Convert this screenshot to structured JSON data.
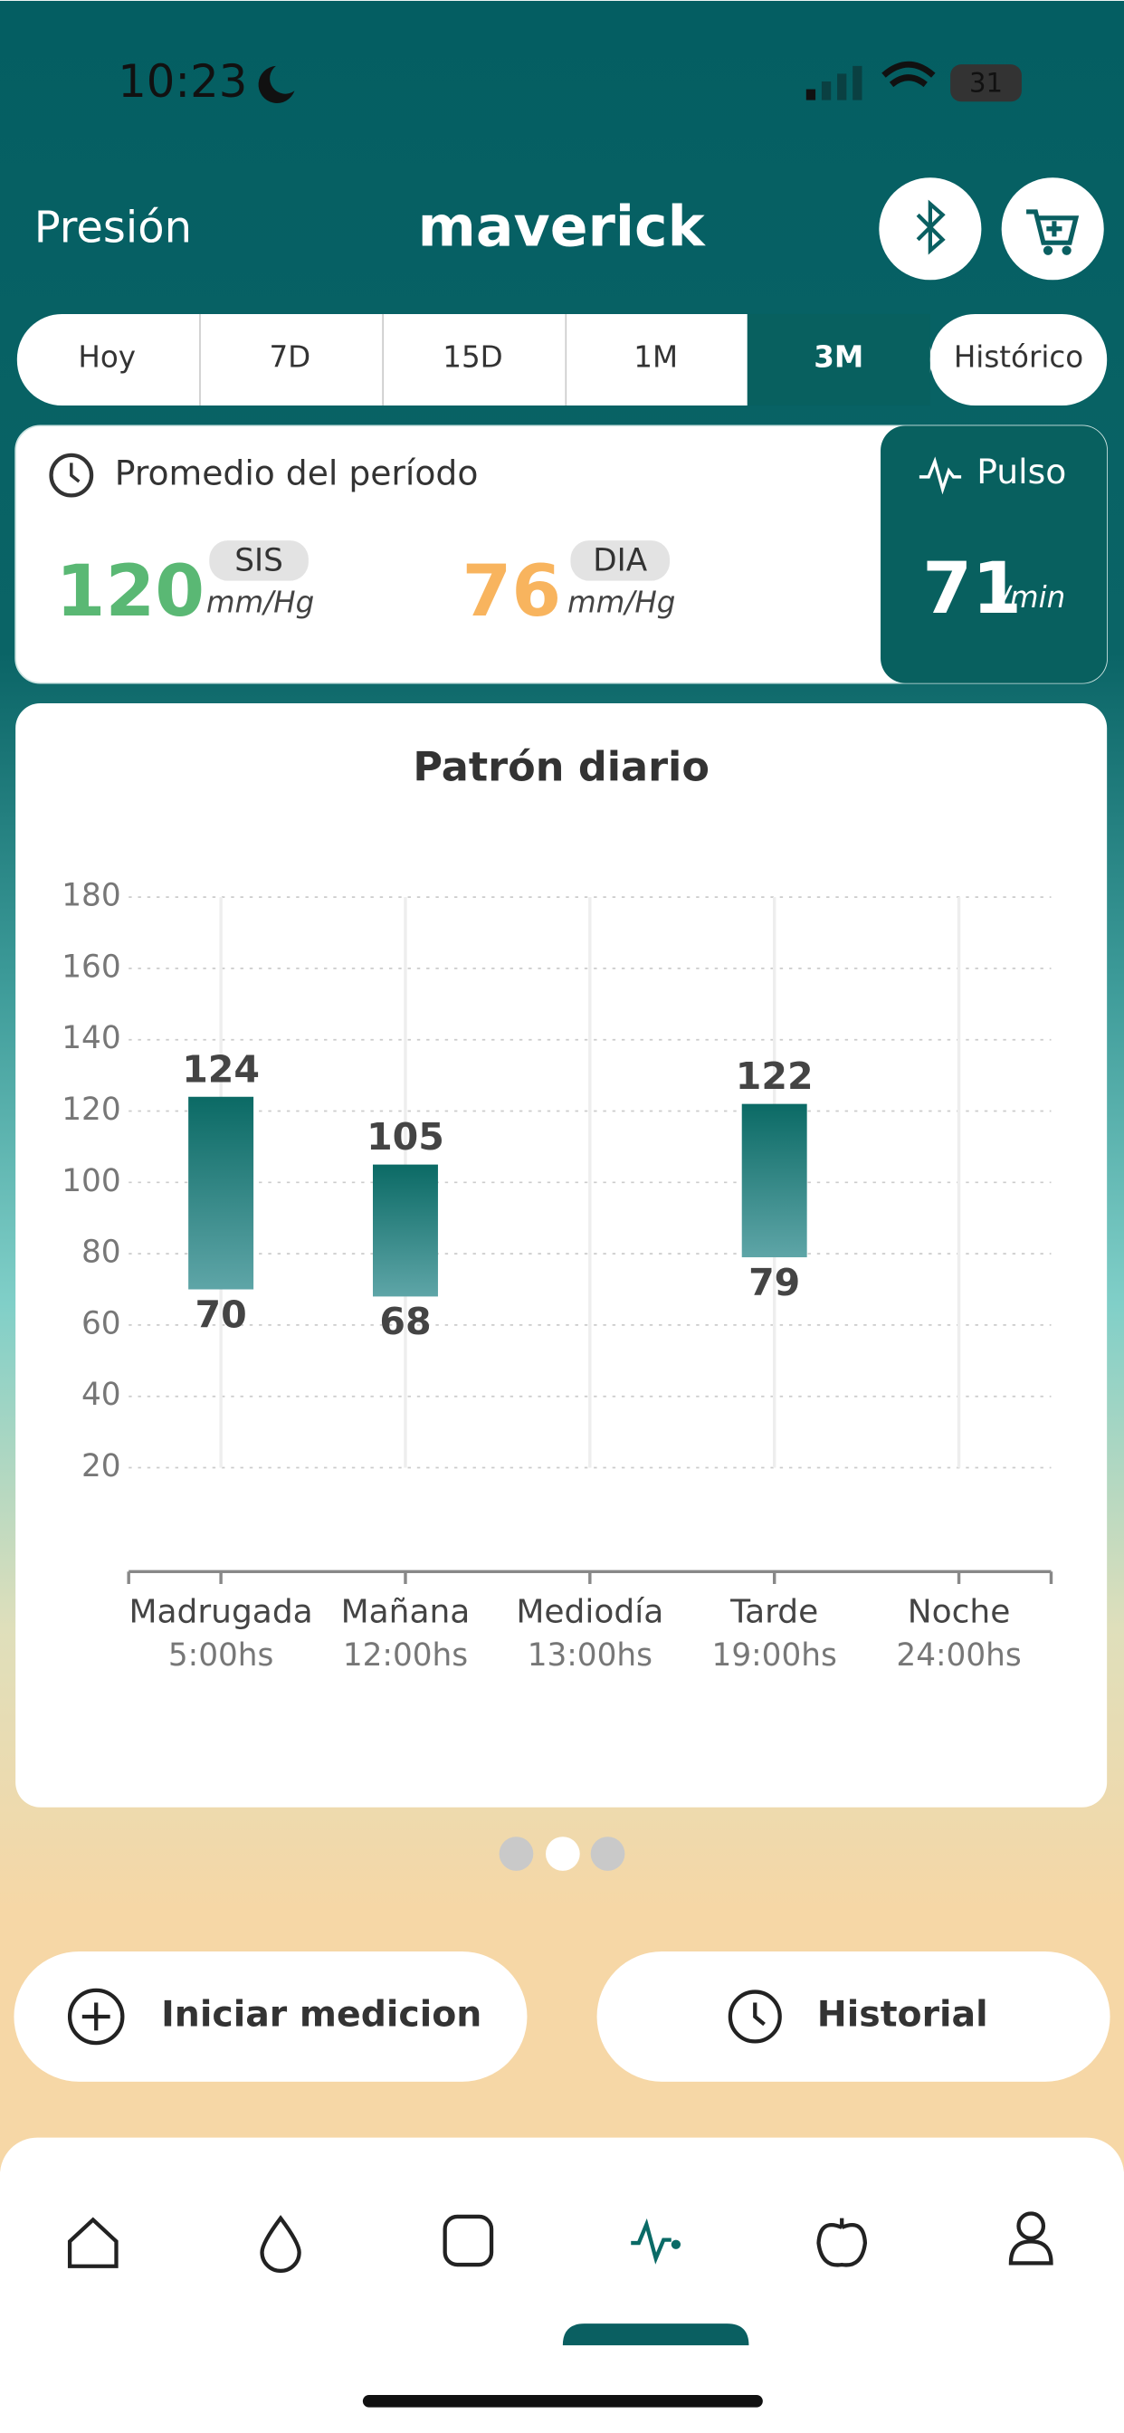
{
  "status_bar": {
    "time": "10:23",
    "battery": "31"
  },
  "header": {
    "title": "Presión",
    "brand": "maverick"
  },
  "tabs": {
    "items": [
      "Hoy",
      "7D",
      "15D",
      "1M",
      "3M",
      "Histórico"
    ],
    "active": 4
  },
  "summary": {
    "title": "Promedio del período",
    "systolic": {
      "value": 120,
      "label": "SIS",
      "unit": "mm/Hg"
    },
    "diastolic": {
      "value": 76,
      "label": "DIA",
      "unit": "mm/Hg"
    },
    "pulse": {
      "title": "Pulso",
      "value": 71,
      "unit": "/min"
    }
  },
  "chart_data": {
    "type": "floating-bar",
    "title": "Patrón diario",
    "categories": [
      "Madrugada",
      "Mañana",
      "Mediodía",
      "Tarde",
      "Noche"
    ],
    "sublabels": [
      "5:00hs",
      "12:00hs",
      "13:00hs",
      "19:00hs",
      "24:00hs"
    ],
    "high": [
      124,
      105,
      null,
      122,
      null
    ],
    "low": [
      70,
      68,
      null,
      79,
      null
    ],
    "ylim": [
      20,
      180
    ],
    "yticks": [
      20,
      40,
      60,
      80,
      100,
      120,
      140,
      160,
      180
    ],
    "grid": true
  },
  "actions": [
    "Iniciar medicion",
    "Historial"
  ]
}
